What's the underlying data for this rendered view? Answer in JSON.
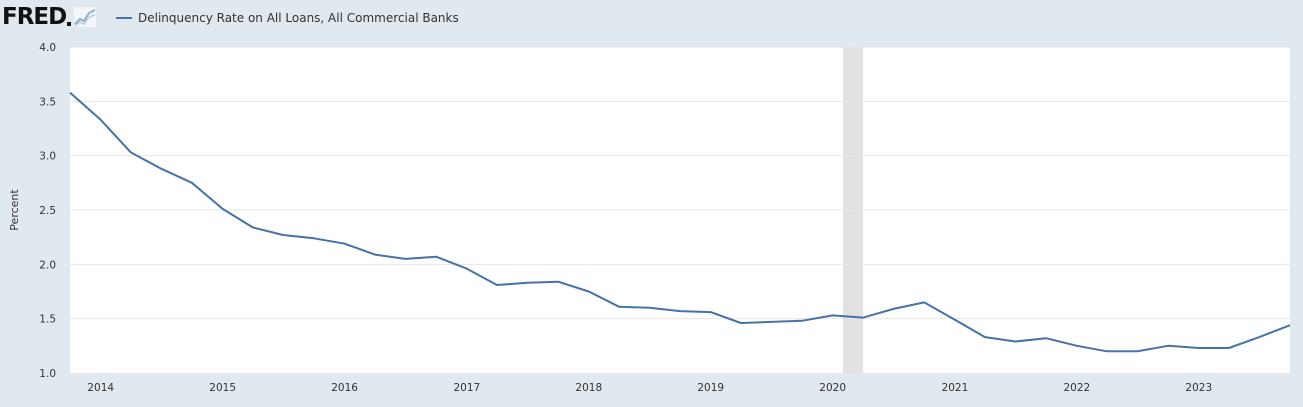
{
  "header": {
    "logo_text": "FRED",
    "legend_label": "Delinquency Rate on All Loans, All Commercial Banks"
  },
  "colors": {
    "series": "#4572a7",
    "background": "#e1e9f0",
    "plot_background": "#ffffff",
    "gridline": "#e6e6e6",
    "recession": "#e1e1e1"
  },
  "chart_data": {
    "type": "line",
    "title": "",
    "xlabel": "",
    "ylabel": "Percent",
    "ylim": [
      1.0,
      4.0
    ],
    "yticks": [
      1.0,
      1.5,
      2.0,
      2.5,
      3.0,
      3.5,
      4.0
    ],
    "ytick_labels": [
      "1.0",
      "1.5",
      "2.0",
      "2.5",
      "3.0",
      "3.5",
      "4.0"
    ],
    "xlim": [
      "2013-10-01",
      "2023-10-01"
    ],
    "xticks": [
      "2014-01-01",
      "2015-01-01",
      "2016-01-01",
      "2017-01-01",
      "2018-01-01",
      "2019-01-01",
      "2020-01-01",
      "2021-01-01",
      "2022-01-01",
      "2023-01-01"
    ],
    "xtick_labels": [
      "2014",
      "2015",
      "2016",
      "2017",
      "2018",
      "2019",
      "2020",
      "2021",
      "2022",
      "2023"
    ],
    "grid": "horizontal",
    "recession_shading": [
      {
        "start": "2020-02-01",
        "end": "2020-04-01"
      }
    ],
    "series": [
      {
        "name": "Delinquency Rate on All Loans, All Commercial Banks",
        "x": [
          "2013-10-01",
          "2014-01-01",
          "2014-04-01",
          "2014-07-01",
          "2014-10-01",
          "2015-01-01",
          "2015-04-01",
          "2015-07-01",
          "2015-10-01",
          "2016-01-01",
          "2016-04-01",
          "2016-07-01",
          "2016-10-01",
          "2017-01-01",
          "2017-04-01",
          "2017-07-01",
          "2017-10-01",
          "2018-01-01",
          "2018-04-01",
          "2018-07-01",
          "2018-10-01",
          "2019-01-01",
          "2019-04-01",
          "2019-07-01",
          "2019-10-01",
          "2020-01-01",
          "2020-04-01",
          "2020-07-01",
          "2020-10-01",
          "2021-01-01",
          "2021-04-01",
          "2021-07-01",
          "2021-10-01",
          "2022-01-01",
          "2022-04-01",
          "2022-07-01",
          "2022-10-01",
          "2023-01-01",
          "2023-04-01",
          "2023-07-01",
          "2023-10-01"
        ],
        "y": [
          3.58,
          3.33,
          3.03,
          2.88,
          2.75,
          2.51,
          2.34,
          2.27,
          2.24,
          2.19,
          2.09,
          2.05,
          2.07,
          1.96,
          1.81,
          1.83,
          1.84,
          1.75,
          1.61,
          1.6,
          1.57,
          1.56,
          1.46,
          1.47,
          1.48,
          1.53,
          1.51,
          1.59,
          1.65,
          1.49,
          1.33,
          1.29,
          1.32,
          1.25,
          1.2,
          1.2,
          1.25,
          1.23,
          1.23,
          1.33,
          1.44
        ]
      }
    ]
  }
}
